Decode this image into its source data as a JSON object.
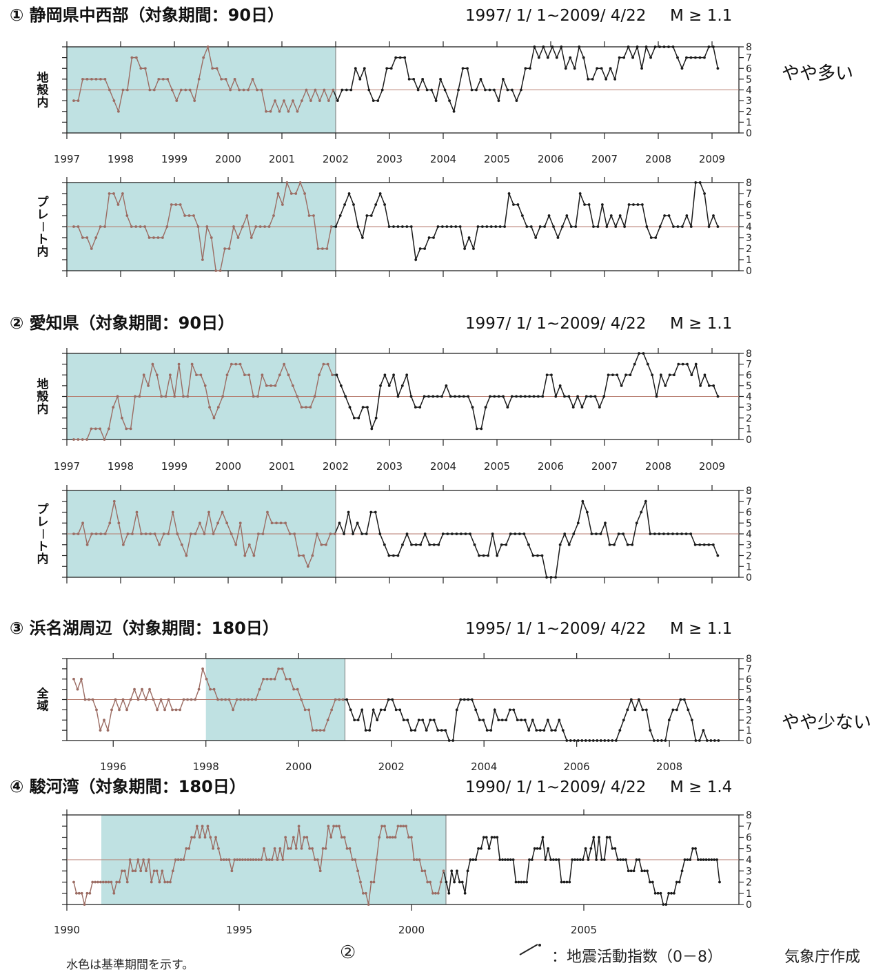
{
  "page": {
    "chart_suffix": "地震活動指数（0－8）",
    "credit": "気象庁作成",
    "footnote": "水色は基準期間を示す。",
    "page_number": "②"
  },
  "chart_data": [
    {
      "type": "line",
      "section_label": "① 静岡県中西部（対象期間：90日）",
      "period": "1997/ 1/ 1~2009/ 4/22",
      "magnitude": "M ≥ 1.1",
      "assessment": "やや多い",
      "x_ticks": [
        "1997",
        "1998",
        "1999",
        "2000",
        "2001",
        "2002",
        "2003",
        "2004",
        "2005",
        "2006",
        "2007",
        "2008",
        "2009"
      ],
      "xlim": [
        1997,
        2009.5
      ],
      "baseline_period": [
        1997,
        2002
      ],
      "y_ticks": [
        "0",
        "1",
        "2",
        "3",
        "4",
        "5",
        "6",
        "7",
        "8"
      ],
      "ylim": [
        0,
        8
      ],
      "reference_level": 4,
      "panels": [
        {
          "ylabel": "地殻内",
          "values": [
            3,
            3,
            5,
            5,
            5,
            5,
            5,
            5,
            4,
            3,
            2,
            4,
            4,
            7,
            7,
            6,
            6,
            4,
            4,
            5,
            5,
            5,
            4,
            3,
            4,
            4,
            4,
            3,
            5,
            7,
            8,
            6,
            6,
            5,
            5,
            4,
            5,
            4,
            4,
            4,
            5,
            4,
            4,
            2,
            2,
            3,
            2,
            3,
            2,
            3,
            2,
            3,
            4,
            3,
            4,
            3,
            4,
            3,
            4,
            3,
            4,
            4,
            4,
            6,
            5,
            6,
            4,
            3,
            3,
            4,
            6,
            6,
            7,
            7,
            7,
            5,
            5,
            4,
            5,
            4,
            4,
            3,
            5,
            4,
            3,
            2,
            4,
            6,
            6,
            4,
            4,
            5,
            4,
            4,
            4,
            3,
            5,
            4,
            4,
            3,
            4,
            6,
            6,
            8,
            7,
            8,
            7,
            8,
            7,
            8,
            6,
            7,
            6,
            8,
            7,
            5,
            5,
            6,
            6,
            5,
            6,
            5,
            7,
            7,
            8,
            7,
            8,
            6,
            8,
            7,
            8,
            8,
            8,
            8,
            8,
            7,
            6,
            7,
            7,
            7,
            7,
            7,
            8,
            8,
            6
          ]
        },
        {
          "ylabel": "プレート内",
          "values": [
            4,
            4,
            3,
            3,
            2,
            3,
            4,
            4,
            7,
            7,
            6,
            7,
            5,
            4,
            4,
            4,
            4,
            3,
            3,
            3,
            3,
            4,
            6,
            6,
            6,
            5,
            5,
            5,
            4,
            1,
            4,
            3,
            0,
            0,
            2,
            2,
            4,
            3,
            4,
            5,
            3,
            4,
            4,
            4,
            4,
            5,
            7,
            6,
            8,
            7,
            7,
            8,
            7,
            5,
            5,
            2,
            2,
            2,
            4,
            4,
            5,
            6,
            7,
            6,
            4,
            3,
            5,
            5,
            6,
            7,
            6,
            4,
            4,
            4,
            4,
            4,
            4,
            1,
            2,
            2,
            3,
            3,
            4,
            4,
            4,
            4,
            4,
            4,
            2,
            3,
            2,
            4,
            4,
            4,
            4,
            4,
            4,
            4,
            7,
            6,
            6,
            5,
            4,
            4,
            3,
            4,
            4,
            5,
            4,
            3,
            4,
            5,
            4,
            4,
            7,
            6,
            6,
            4,
            4,
            6,
            4,
            5,
            4,
            5,
            4,
            6,
            6,
            6,
            6,
            4,
            3,
            3,
            4,
            5,
            5,
            4,
            4,
            4,
            5,
            4,
            8,
            8,
            7,
            4,
            5,
            4
          ]
        }
      ]
    },
    {
      "type": "line",
      "section_label": "② 愛知県（対象期間：90日）",
      "period": "1997/ 1/ 1~2009/ 4/22",
      "magnitude": "M ≥ 1.1",
      "assessment": "",
      "x_ticks": [
        "1997",
        "1998",
        "1999",
        "2000",
        "2001",
        "2002",
        "2003",
        "2004",
        "2005",
        "2006",
        "2007",
        "2008",
        "2009"
      ],
      "xlim": [
        1997,
        2009.5
      ],
      "baseline_period": [
        1997,
        2002
      ],
      "y_ticks": [
        "0",
        "1",
        "2",
        "3",
        "4",
        "5",
        "6",
        "7",
        "8"
      ],
      "ylim": [
        0,
        8
      ],
      "reference_level": 4,
      "panels": [
        {
          "ylabel": "地殻内",
          "values": [
            0,
            0,
            0,
            0,
            1,
            1,
            1,
            0,
            1,
            3,
            4,
            2,
            1,
            1,
            4,
            4,
            6,
            5,
            7,
            6,
            4,
            4,
            6,
            4,
            7,
            4,
            4,
            7,
            6,
            6,
            5,
            3,
            2,
            3,
            4,
            6,
            7,
            7,
            7,
            6,
            6,
            4,
            4,
            6,
            5,
            5,
            5,
            6,
            7,
            6,
            5,
            4,
            3,
            3,
            3,
            4,
            6,
            7,
            7,
            6,
            6,
            5,
            4,
            3,
            2,
            2,
            3,
            3,
            1,
            2,
            5,
            6,
            5,
            6,
            4,
            5,
            6,
            4,
            3,
            3,
            4,
            4,
            4,
            4,
            4,
            5,
            4,
            4,
            4,
            4,
            4,
            3,
            1,
            1,
            3,
            4,
            4,
            4,
            4,
            3,
            4,
            4,
            4,
            4,
            4,
            4,
            4,
            4,
            6,
            6,
            4,
            5,
            4,
            4,
            3,
            4,
            3,
            4,
            4,
            4,
            3,
            4,
            6,
            6,
            6,
            5,
            6,
            6,
            7,
            8,
            8,
            7,
            6,
            4,
            6,
            5,
            6,
            6,
            7,
            7,
            7,
            6,
            7,
            5,
            6,
            5,
            5,
            4
          ]
        },
        {
          "ylabel": "プレート内",
          "values": [
            4,
            4,
            5,
            3,
            4,
            4,
            4,
            4,
            5,
            7,
            5,
            3,
            4,
            4,
            6,
            4,
            4,
            4,
            4,
            3,
            4,
            4,
            6,
            4,
            3,
            2,
            4,
            4,
            5,
            4,
            6,
            4,
            5,
            6,
            5,
            4,
            3,
            5,
            2,
            3,
            2,
            4,
            4,
            6,
            5,
            5,
            5,
            5,
            4,
            4,
            2,
            2,
            1,
            2,
            4,
            3,
            3,
            4,
            4,
            5,
            4,
            6,
            4,
            5,
            4,
            4,
            6,
            6,
            4,
            3,
            2,
            2,
            2,
            3,
            4,
            3,
            3,
            3,
            4,
            3,
            3,
            3,
            4,
            4,
            4,
            4,
            4,
            4,
            4,
            3,
            2,
            2,
            2,
            4,
            2,
            3,
            3,
            4,
            4,
            4,
            4,
            3,
            2,
            2,
            2,
            0,
            0,
            0,
            3,
            4,
            3,
            4,
            5,
            7,
            6,
            4,
            4,
            4,
            5,
            3,
            3,
            4,
            4,
            3,
            3,
            5,
            6,
            7,
            4,
            4,
            4,
            4,
            4,
            4,
            4,
            4,
            4,
            4,
            3,
            3,
            3,
            3,
            3,
            2
          ]
        }
      ]
    },
    {
      "type": "line",
      "section_label": "③ 浜名湖周辺（対象期間：180日）",
      "period": "1995/ 1/ 1~2009/ 4/22",
      "magnitude": "M ≥ 1.1",
      "assessment": "やや少ない",
      "x_ticks": [
        "1996",
        "1998",
        "2000",
        "2002",
        "2004",
        "2006",
        "2008"
      ],
      "xlim": [
        1995,
        2009.5
      ],
      "baseline_period": [
        1998,
        2001
      ],
      "y_ticks": [
        "0",
        "1",
        "2",
        "3",
        "4",
        "5",
        "6",
        "7",
        "8"
      ],
      "ylim": [
        0,
        8
      ],
      "reference_level": 4,
      "panels": [
        {
          "ylabel": "全域",
          "values": [
            6,
            5,
            6,
            4,
            4,
            4,
            3,
            1,
            2,
            1,
            3,
            4,
            3,
            4,
            3,
            4,
            5,
            4,
            5,
            4,
            5,
            4,
            3,
            4,
            3,
            4,
            3,
            3,
            3,
            4,
            4,
            4,
            4,
            5,
            7,
            6,
            5,
            5,
            4,
            4,
            4,
            4,
            3,
            4,
            4,
            4,
            4,
            4,
            4,
            5,
            6,
            6,
            6,
            6,
            7,
            7,
            6,
            6,
            5,
            5,
            4,
            3,
            3,
            1,
            1,
            1,
            1,
            2,
            3,
            4,
            4,
            4,
            4,
            3,
            2,
            2,
            3,
            1,
            1,
            3,
            2,
            3,
            3,
            4,
            4,
            3,
            3,
            2,
            2,
            1,
            1,
            2,
            2,
            1,
            2,
            2,
            1,
            1,
            1,
            0,
            0,
            3,
            4,
            4,
            4,
            4,
            3,
            2,
            2,
            1,
            1,
            3,
            2,
            2,
            2,
            3,
            3,
            2,
            2,
            2,
            1,
            2,
            1,
            1,
            1,
            2,
            1,
            1,
            2,
            1,
            0,
            0,
            0,
            0,
            0,
            0,
            0,
            0,
            0,
            0,
            0,
            0,
            0,
            0,
            1,
            2,
            3,
            4,
            3,
            4,
            3,
            3,
            1,
            0,
            0,
            0,
            0,
            2,
            3,
            3,
            4,
            4,
            3,
            2,
            0,
            0,
            1,
            0,
            0,
            0,
            0
          ]
        }
      ]
    },
    {
      "type": "line",
      "section_label": "④ 駿河湾（対象期間：180日）",
      "period": "1990/ 1/ 1~2009/ 4/22",
      "magnitude": "M ≥ 1.4",
      "assessment": "",
      "x_ticks": [
        "1990",
        "1995",
        "2000",
        "2005"
      ],
      "xlim": [
        1990,
        2009.5
      ],
      "baseline_period": [
        1991,
        2001
      ],
      "y_ticks": [
        "0",
        "1",
        "2",
        "3",
        "4",
        "5",
        "6",
        "7",
        "8"
      ],
      "ylim": [
        0,
        8
      ],
      "reference_level": 4,
      "panels": [
        {
          "ylabel": "",
          "values": [
            2,
            1,
            1,
            1,
            0,
            1,
            1,
            2,
            2,
            2,
            2,
            2,
            2,
            2,
            2,
            1,
            2,
            2,
            3,
            3,
            2,
            4,
            3,
            3,
            4,
            3,
            4,
            3,
            4,
            2,
            3,
            3,
            2,
            3,
            2,
            2,
            2,
            3,
            4,
            4,
            4,
            4,
            5,
            5,
            6,
            6,
            7,
            6,
            7,
            6,
            7,
            6,
            5,
            6,
            5,
            4,
            4,
            4,
            4,
            3,
            4,
            4,
            4,
            4,
            4,
            4,
            4,
            4,
            4,
            4,
            4,
            5,
            4,
            4,
            4,
            5,
            4,
            5,
            4,
            6,
            5,
            5,
            6,
            5,
            7,
            5,
            6,
            6,
            5,
            5,
            4,
            4,
            3,
            5,
            5,
            7,
            6,
            7,
            7,
            7,
            6,
            6,
            5,
            5,
            4,
            4,
            3,
            2,
            1,
            1,
            0,
            2,
            2,
            4,
            6,
            7,
            7,
            6,
            6,
            6,
            6,
            7,
            7,
            7,
            7,
            6,
            6,
            4,
            4,
            4,
            3,
            3,
            2,
            2,
            1,
            1,
            1,
            2,
            3,
            2,
            1,
            3,
            2,
            3,
            2,
            2,
            1,
            3,
            4,
            4,
            4,
            5,
            5,
            6,
            6,
            5,
            6,
            6,
            6,
            4,
            4,
            4,
            4,
            4,
            4,
            2,
            2,
            2,
            2,
            2,
            4,
            4,
            5,
            5,
            5,
            6,
            4,
            5,
            4,
            4,
            4,
            4,
            2,
            2,
            2,
            2,
            4,
            4,
            4,
            4,
            4,
            5,
            4,
            5,
            6,
            4,
            6,
            4,
            4,
            6,
            6,
            5,
            5,
            4,
            4,
            4,
            4,
            3,
            3,
            3,
            4,
            4,
            3,
            3,
            3,
            2,
            2,
            1,
            1,
            1,
            0,
            0,
            1,
            1,
            1,
            2,
            2,
            3,
            4,
            4,
            4,
            5,
            5,
            4,
            4,
            4,
            4,
            4,
            4,
            4,
            4,
            2
          ]
        }
      ]
    }
  ]
}
